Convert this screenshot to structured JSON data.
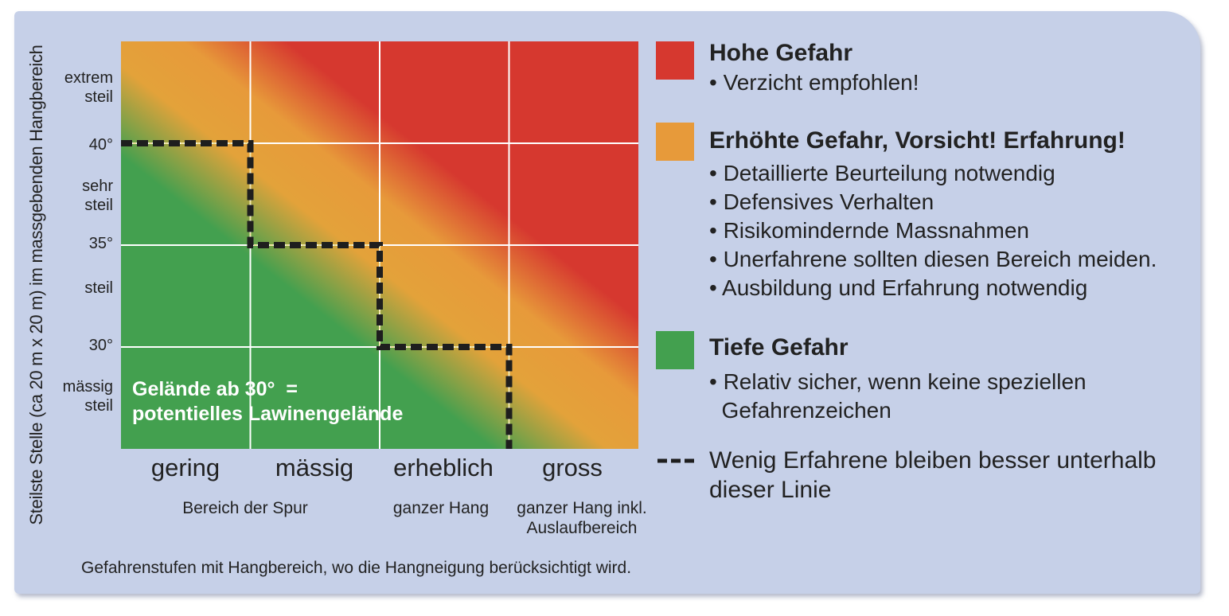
{
  "y_axis": {
    "label": "Steilste Stelle (ca 20 m x 20 m) im massgebenden Hangbereich",
    "ticks": [
      "extrem\nsteil",
      "40°",
      "sehr\nsteil",
      "35°",
      "steil",
      "30°",
      "mässig\nsteil"
    ]
  },
  "x_axis": {
    "categories": [
      "gering",
      "mässig",
      "erheblich",
      "gross"
    ],
    "sub_labels": [
      "Bereich der Spur",
      "ganzer Hang",
      "ganzer Hang inkl.\nAuslaufbereich"
    ]
  },
  "callout": "Gelände ab 30°  =\npotentielles Lawinengelände",
  "caption": "Gefahrenstufen mit Hangbereich, wo die Hangneigung berücksichtigt wird.",
  "legend": [
    {
      "color": "#d6382f",
      "title": "Hohe Gefahr",
      "bullets": [
        "• Verzicht empfohlen!"
      ]
    },
    {
      "color": "#e79a3a",
      "title": "Erhöhte Gefahr, Vorsicht! Erfahrung!",
      "bullets": [
        "• Detaillierte Beurteilung notwendig",
        "• Defensives Verhalten",
        "• Risikomindernde Massnahmen",
        "• Unerfahrene sollten diesen Bereich meiden.",
        "• Ausbildung und Erfahrung notwendig"
      ]
    },
    {
      "color": "#43a04f",
      "title": "Tiefe Gefahr",
      "bullets": [
        "• Relativ sicher, wenn keine speziellen\n  Gefahrenzeichen"
      ]
    }
  ],
  "legend_line": "Wenig Erfahrene bleiben besser unterhalb\ndieser Linie"
}
